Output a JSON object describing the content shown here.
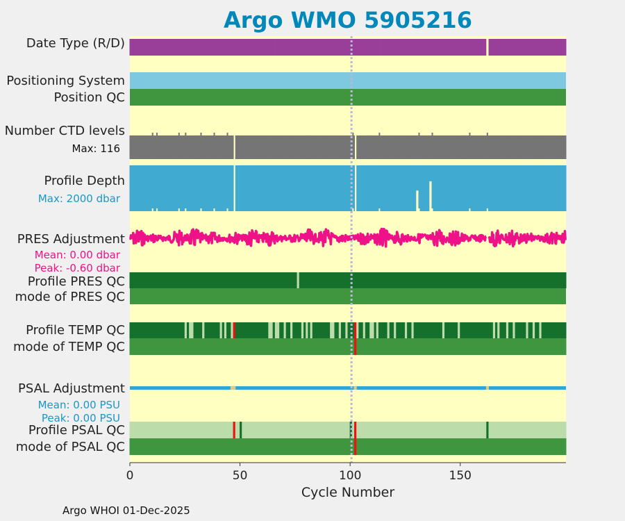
{
  "title": "Argo WMO 5905216",
  "footer": "Argo WHOI 01-Dec-2025",
  "colors": {
    "background": "#ffffc2",
    "date_type": "#993f99",
    "positioning": "#7ec8e0",
    "qc_good": "#3f963f",
    "qc_dark": "#14702a",
    "qc_light": "#bcdcaa",
    "qc_bad": "#ee1111",
    "ctd": "#757575",
    "depth": "#40aad0",
    "pres_adj": "#ee1188",
    "psal_adj": "#2fa6d6",
    "title": "#0088bb"
  },
  "labels": {
    "date_type": "Date Type (R/D)",
    "positioning_system": "Positioning System",
    "position_qc": "Position QC",
    "ctd_levels": "Number CTD levels",
    "ctd_max": "Max: 116",
    "profile_depth": "Profile Depth",
    "depth_max": "Max: 2000 dbar",
    "pres_adjustment": "PRES Adjustment",
    "pres_mean": "Mean: 0.00 dbar",
    "pres_peak": "Peak: -0.60 dbar",
    "profile_pres_qc": "Profile PRES QC",
    "mode_pres_qc": "mode of PRES QC",
    "profile_temp_qc": "Profile TEMP QC",
    "mode_temp_qc": "mode of TEMP QC",
    "psal_adjustment": "PSAL Adjustment",
    "psal_mean": "Mean: 0.00 PSU",
    "psal_peak": "Peak: 0.00 PSU",
    "profile_psal_qc": "Profile PSAL QC",
    "mode_psal_qc": "mode of PSAL QC"
  },
  "chart_data": {
    "type": "heatmap",
    "title": "Argo WMO 5905216",
    "xlabel": "Cycle Number",
    "xlim": [
      0,
      198
    ],
    "xticks": [
      0,
      50,
      100,
      150
    ],
    "marker_cycle": 100,
    "n_cycles": 198,
    "date_type_gaps": [
      162
    ],
    "ctd_levels_max": 116,
    "ctd_missing_cycles": [
      47,
      102
    ],
    "ctd_low_cycles": [
      10,
      12,
      22,
      25,
      32,
      38,
      44,
      101,
      113,
      131,
      137,
      154,
      162
    ],
    "depth_max_dbar": 2000,
    "depth_missing_cycles": [
      47,
      102
    ],
    "depth_shallow_cycles": [
      {
        "cycle": 130,
        "fraction": 0.55
      },
      {
        "cycle": 136,
        "fraction": 0.35
      }
    ],
    "pres_adjustment": {
      "mean": 0.0,
      "peak": -0.6,
      "gaps": [
        162
      ]
    },
    "profile_pres_qc": {
      "default": "dark",
      "light_cycles": [
        76
      ]
    },
    "profile_temp_qc": {
      "default": "dark",
      "light_cycles": [
        25,
        27,
        28,
        33,
        41,
        43,
        46,
        63,
        64,
        66,
        67,
        70,
        73,
        78,
        80,
        82,
        91,
        92,
        95,
        98,
        103,
        106,
        109,
        110,
        112,
        117,
        120,
        125,
        128,
        142,
        149,
        165,
        167,
        171,
        174,
        180,
        183,
        186
      ],
      "bad_cycles": [
        47,
        102
      ]
    },
    "mode_temp_qc": {
      "default": "good",
      "bad_cycles": [
        102
      ]
    },
    "psal_adjustment": {
      "mean": 0.0,
      "peak": 0.0,
      "gaps": [
        46,
        47,
        102,
        162
      ]
    },
    "profile_psal_qc": {
      "default": "light",
      "dark_cycles": [
        50,
        100,
        162
      ],
      "bad_cycles": [
        47,
        102
      ]
    },
    "mode_psal_qc": {
      "default": "good",
      "bad_cycles": [
        102
      ]
    }
  }
}
